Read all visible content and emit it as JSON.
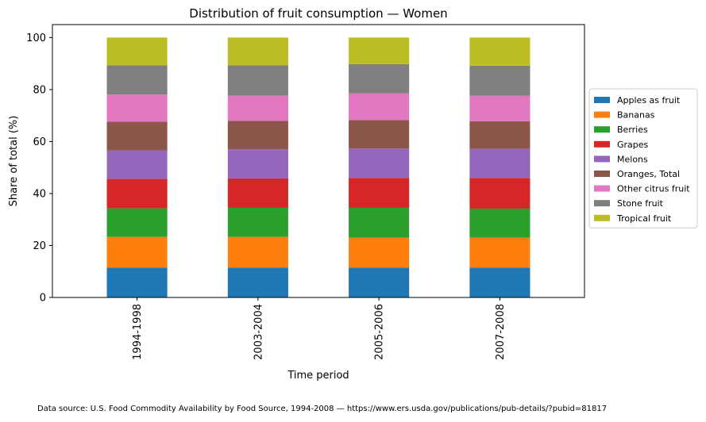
{
  "chart_data": {
    "type": "bar",
    "stacked": true,
    "title": "Distribution of fruit consumption — Women",
    "xlabel": "Time period",
    "ylabel": "Share of total (%)",
    "ylim": [
      0,
      105
    ],
    "yticks": [
      0,
      20,
      40,
      60,
      80,
      100
    ],
    "categories": [
      "1994-1998",
      "2003-2004",
      "2005-2006",
      "2007-2008"
    ],
    "legend_position": "right",
    "grid": false,
    "series": [
      {
        "name": "Apples as fruit",
        "color": "#1f77b4",
        "values": [
          11.5,
          11.5,
          11.5,
          11.5
        ]
      },
      {
        "name": "Bananas",
        "color": "#ff7f0e",
        "values": [
          11.8,
          11.8,
          11.5,
          11.5
        ]
      },
      {
        "name": "Berries",
        "color": "#2ca02c",
        "values": [
          11.0,
          11.2,
          11.5,
          11.2
        ]
      },
      {
        "name": "Grapes",
        "color": "#d62728",
        "values": [
          11.3,
          11.3,
          11.5,
          11.8
        ]
      },
      {
        "name": "Melons",
        "color": "#9467bd",
        "values": [
          11.0,
          11.2,
          11.3,
          11.2
        ]
      },
      {
        "name": "Oranges, Total",
        "color": "#8c564b",
        "values": [
          11.0,
          11.0,
          11.0,
          10.6
        ]
      },
      {
        "name": "Other citrus fruit",
        "color": "#e377c2",
        "values": [
          10.5,
          9.7,
          10.2,
          9.8
        ]
      },
      {
        "name": "Stone fruit",
        "color": "#7f7f7f",
        "values": [
          11.2,
          11.6,
          11.3,
          11.6
        ]
      },
      {
        "name": "Tropical fruit",
        "color": "#bcbd22",
        "values": [
          10.7,
          10.7,
          10.2,
          10.8
        ]
      }
    ]
  },
  "footer": {
    "source_note": "Data source: U.S. Food Commodity Availability by Food Source, 1994-2008 — https://www.ers.usda.gov/publications/pub-details/?pubid=81817"
  }
}
